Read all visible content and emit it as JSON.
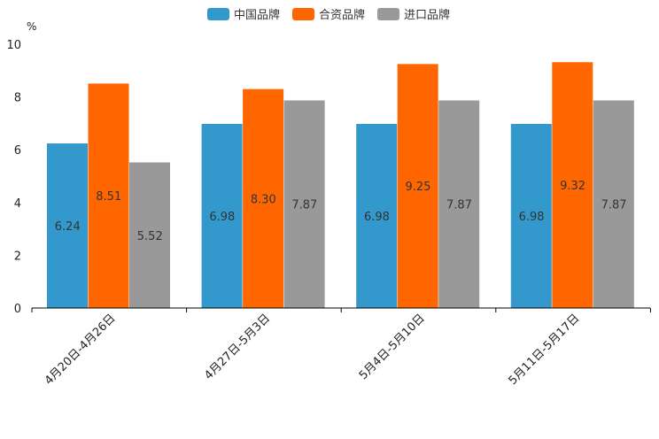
{
  "chart_data": {
    "type": "bar",
    "title": "",
    "xlabel": "",
    "ylabel": "%",
    "ylim": [
      0,
      10
    ],
    "yticks": [
      0,
      2,
      4,
      6,
      8,
      10
    ],
    "legend_position": "top-center",
    "grid": false,
    "categories": [
      "4月20日-4月26日",
      "4月27日-5月3日",
      "5月4日-5月10日",
      "5月11日-5月17日"
    ],
    "series": [
      {
        "name": "中国品牌",
        "color": "#3399cc",
        "values": [
          6.24,
          6.98,
          6.98,
          6.98
        ],
        "labels": [
          "6.24",
          "6.98",
          "6.98",
          "6.98"
        ]
      },
      {
        "name": "合资品牌",
        "color": "#ff6600",
        "values": [
          8.51,
          8.3,
          9.25,
          9.32
        ],
        "labels": [
          "8.51",
          "8.30",
          "9.25",
          "9.32"
        ]
      },
      {
        "name": "进口品牌",
        "color": "#999999",
        "values": [
          5.52,
          7.87,
          7.87,
          7.87
        ],
        "labels": [
          "5.52",
          "7.87",
          "7.87",
          "7.87"
        ]
      }
    ]
  }
}
